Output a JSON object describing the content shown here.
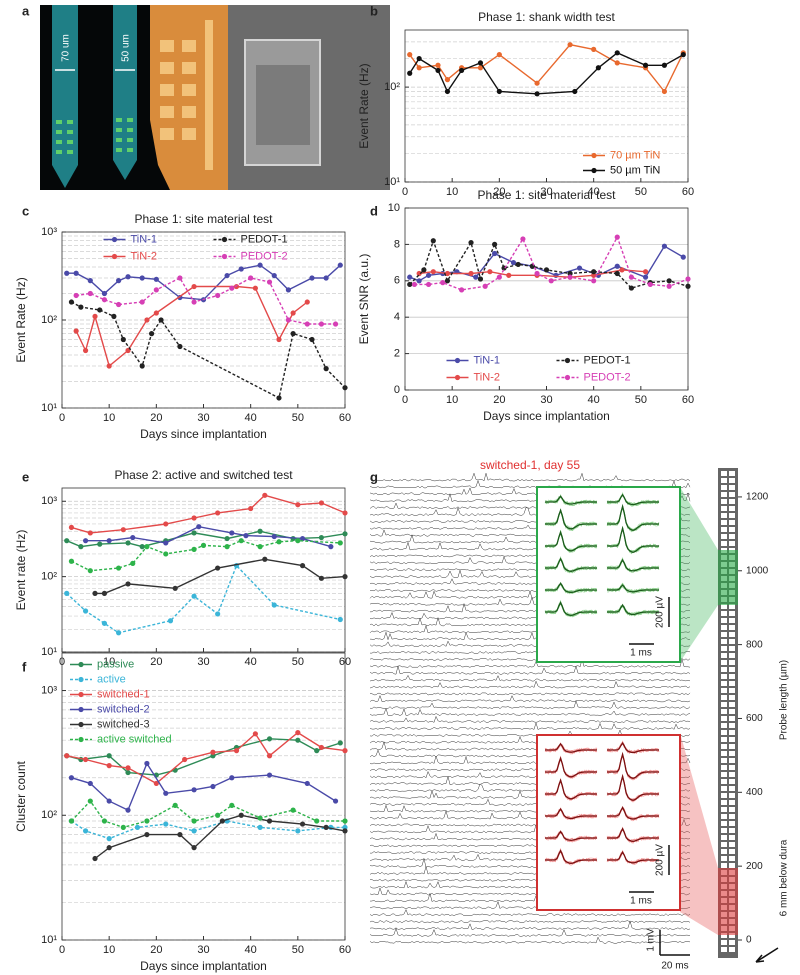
{
  "chart_data": [
    {
      "type": "line",
      "title": "Phase 1: shank width test",
      "ylabel": "Event Rate (Hz)",
      "log_y": true,
      "grid": true,
      "legend": "lower right",
      "xlim": [
        0,
        60
      ],
      "xticks": [
        0,
        10,
        20,
        30,
        40,
        50,
        60
      ],
      "ylim": [
        10,
        400
      ],
      "yticks": [
        {
          "value": 10,
          "label": "10¹"
        },
        {
          "value": 100,
          "label": "10²"
        }
      ],
      "series": [
        {
          "name": "70 µm TiN",
          "color": "#e8692e",
          "style": "solid",
          "x": [
            1,
            3,
            7,
            9,
            12,
            16,
            20,
            28,
            35,
            40,
            45,
            51,
            55,
            59
          ],
          "values": [
            220,
            160,
            170,
            120,
            160,
            160,
            220,
            110,
            280,
            250,
            180,
            160,
            90,
            230
          ]
        },
        {
          "name": "50 µm TiN",
          "color": "#111111",
          "style": "solid",
          "x": [
            1,
            3,
            7,
            9,
            12,
            16,
            20,
            28,
            36,
            41,
            45,
            51,
            55,
            59
          ],
          "values": [
            140,
            200,
            150,
            90,
            150,
            180,
            90,
            85,
            90,
            160,
            230,
            170,
            170,
            220
          ]
        }
      ]
    },
    {
      "type": "line",
      "title": "Phase 1: site material test",
      "ylabel": "Event Rate (Hz)",
      "xlabel": "Days since implantation",
      "log_y": true,
      "grid": true,
      "legend": "upper center",
      "xlim": [
        0,
        60
      ],
      "xticks": [
        0,
        10,
        20,
        30,
        40,
        50,
        60
      ],
      "ylim": [
        10,
        1000
      ],
      "yticks": [
        {
          "value": 10,
          "label": "10¹"
        },
        {
          "value": 100,
          "label": "10²"
        },
        {
          "value": 1000,
          "label": "10³"
        }
      ],
      "series": [
        {
          "name": "TiN-1",
          "color": "#4a4aa8",
          "style": "solid",
          "x": [
            1,
            3,
            6,
            9,
            12,
            14,
            17,
            20,
            25,
            30,
            35,
            38,
            42,
            45,
            48,
            53,
            56,
            59
          ],
          "values": [
            340,
            340,
            280,
            200,
            280,
            310,
            300,
            290,
            180,
            170,
            320,
            380,
            420,
            320,
            220,
            300,
            300,
            420
          ]
        },
        {
          "name": "TiN-2",
          "color": "#e34a4a",
          "style": "solid",
          "x": [
            3,
            5,
            7,
            10,
            14,
            18,
            20,
            28,
            37,
            41,
            46,
            49,
            52
          ],
          "values": [
            75,
            45,
            110,
            30,
            45,
            100,
            120,
            240,
            240,
            230,
            60,
            120,
            160
          ]
        },
        {
          "name": "PEDOT-1",
          "color": "#222222",
          "style": "dashed",
          "x": [
            2,
            4,
            8,
            11,
            13,
            17,
            19,
            21,
            25,
            46,
            49,
            53,
            56,
            60
          ],
          "values": [
            160,
            140,
            130,
            110,
            60,
            30,
            70,
            100,
            50,
            13,
            70,
            60,
            28,
            17
          ]
        },
        {
          "name": "PEDOT-2",
          "color": "#d63fb5",
          "style": "dashed",
          "x": [
            3,
            6,
            9,
            12,
            17,
            20,
            25,
            28,
            33,
            36,
            40,
            44,
            48,
            52,
            55,
            58
          ],
          "values": [
            190,
            200,
            170,
            150,
            160,
            220,
            300,
            160,
            190,
            230,
            300,
            270,
            100,
            90,
            90,
            90
          ]
        }
      ]
    },
    {
      "type": "line",
      "title": "Phase 1: site material test",
      "ylabel": "Event SNR (a.u.)",
      "xlabel": "Days since implantation",
      "log_y": false,
      "grid": true,
      "legend": "lower center",
      "xlim": [
        0,
        60
      ],
      "xticks": [
        0,
        10,
        20,
        30,
        40,
        50,
        60
      ],
      "ylim": [
        0,
        10
      ],
      "yticks": [
        0,
        2,
        4,
        6,
        8,
        10
      ],
      "series": [
        {
          "name": "TiN-1",
          "color": "#4a4aa8",
          "style": "solid",
          "x": [
            1,
            3,
            5,
            8,
            11,
            15,
            19,
            23,
            27,
            32,
            37,
            41,
            45,
            51,
            55,
            59
          ],
          "values": [
            6.2,
            6.0,
            6.3,
            6.4,
            6.5,
            6.2,
            7.5,
            7.0,
            6.8,
            6.3,
            6.7,
            6.3,
            6.8,
            6.2,
            7.9,
            7.3
          ]
        },
        {
          "name": "TiN-2",
          "color": "#e34a4a",
          "style": "solid",
          "x": [
            3,
            6,
            9,
            14,
            18,
            22,
            28,
            35,
            40,
            46,
            51
          ],
          "values": [
            6.4,
            6.5,
            6.4,
            6.4,
            6.5,
            6.3,
            6.3,
            6.2,
            6.3,
            6.6,
            6.5
          ]
        },
        {
          "name": "PEDOT-1",
          "color": "#222222",
          "style": "dashed",
          "x": [
            1,
            4,
            6,
            9,
            14,
            16,
            19,
            21,
            24,
            27,
            30,
            35,
            40,
            45,
            48,
            52,
            56,
            60
          ],
          "values": [
            5.8,
            6.6,
            8.2,
            6.0,
            8.1,
            6.1,
            8.0,
            6.7,
            6.9,
            6.8,
            6.6,
            6.4,
            6.5,
            6.4,
            5.6,
            5.9,
            6.0,
            5.7
          ]
        },
        {
          "name": "PEDOT-2",
          "color": "#d63fb5",
          "style": "dashed",
          "x": [
            2,
            5,
            8,
            12,
            17,
            20,
            25,
            28,
            31,
            35,
            40,
            45,
            48,
            52,
            56,
            60
          ],
          "values": [
            5.8,
            5.8,
            5.9,
            5.5,
            5.7,
            6.2,
            8.3,
            6.4,
            6.0,
            6.2,
            6.0,
            8.4,
            6.2,
            5.8,
            5.7,
            6.1
          ]
        }
      ]
    },
    {
      "type": "line",
      "title": "Phase 2: active and switched test",
      "ylabel": "Event rate (Hz)",
      "log_y": true,
      "grid": true,
      "xlim": [
        0,
        60
      ],
      "xticks": [
        0,
        10,
        20,
        30,
        40,
        50,
        60
      ],
      "ylim": [
        10,
        1500
      ],
      "yticks": [
        {
          "value": 10,
          "label": "10¹"
        },
        {
          "value": 100,
          "label": "10²"
        },
        {
          "value": 1000,
          "label": "10³"
        }
      ],
      "series": [
        {
          "color": "#2e8b57",
          "style": "solid",
          "x": [
            1,
            4,
            8,
            14,
            17,
            22,
            28,
            35,
            42,
            49,
            55,
            60
          ],
          "values": [
            300,
            250,
            270,
            280,
            250,
            300,
            380,
            320,
            400,
            320,
            330,
            370
          ]
        },
        {
          "color": "#3bb5d8",
          "style": "dashed",
          "x": [
            1,
            5,
            9,
            12,
            23,
            28,
            33,
            37,
            45,
            59
          ],
          "values": [
            60,
            35,
            24,
            18,
            26,
            55,
            32,
            140,
            42,
            27
          ]
        },
        {
          "color": "#e34a4a",
          "style": "solid",
          "x": [
            2,
            6,
            13,
            22,
            28,
            33,
            40,
            43,
            50,
            55,
            60
          ],
          "values": [
            450,
            380,
            420,
            500,
            600,
            700,
            800,
            1200,
            900,
            950,
            700
          ]
        },
        {
          "color": "#4a4aa8",
          "style": "solid",
          "x": [
            5,
            10,
            15,
            22,
            29,
            36,
            39,
            45,
            51,
            57
          ],
          "values": [
            300,
            300,
            330,
            280,
            460,
            380,
            350,
            340,
            320,
            250
          ]
        },
        {
          "color": "#333333",
          "style": "solid",
          "x": [
            7,
            9,
            14,
            24,
            33,
            43,
            51,
            55,
            60
          ],
          "values": [
            60,
            60,
            80,
            70,
            130,
            170,
            140,
            95,
            100
          ]
        },
        {
          "color": "#2db34a",
          "style": "dashed",
          "x": [
            2,
            6,
            12,
            15,
            18,
            22,
            28,
            30,
            35,
            38,
            42,
            46,
            50,
            59
          ],
          "values": [
            160,
            120,
            130,
            150,
            250,
            200,
            230,
            260,
            250,
            300,
            250,
            290,
            300,
            280
          ]
        }
      ]
    },
    {
      "type": "line",
      "ylabel": "Cluster count",
      "xlabel": "Days since implantation",
      "log_y": true,
      "grid": true,
      "legend": "upper left",
      "xlim": [
        0,
        60
      ],
      "xticks": [
        0,
        10,
        20,
        30,
        40,
        50,
        60
      ],
      "ylim": [
        10,
        2000
      ],
      "yticks": [
        {
          "value": 10,
          "label": "10¹"
        },
        {
          "value": 100,
          "label": "10²"
        },
        {
          "value": 1000,
          "label": "10³"
        }
      ],
      "series": [
        {
          "name": "passive",
          "color": "#2e8b57",
          "style": "solid",
          "x": [
            1,
            4,
            10,
            14,
            20,
            24,
            32,
            37,
            44,
            50,
            54,
            59
          ],
          "values": [
            300,
            280,
            300,
            220,
            210,
            230,
            300,
            350,
            410,
            400,
            330,
            380
          ]
        },
        {
          "name": "active",
          "color": "#3bb5d8",
          "style": "dashed",
          "x": [
            2,
            5,
            10,
            16,
            22,
            28,
            35,
            42,
            50,
            57,
            60
          ],
          "values": [
            90,
            75,
            65,
            80,
            85,
            75,
            90,
            80,
            75,
            80,
            80
          ]
        },
        {
          "name": "switched-1",
          "color": "#e34a4a",
          "style": "solid",
          "x": [
            1,
            5,
            10,
            14,
            20,
            26,
            32,
            37,
            41,
            44,
            50,
            55,
            60
          ],
          "values": [
            300,
            280,
            250,
            240,
            180,
            280,
            320,
            330,
            450,
            300,
            460,
            350,
            330
          ]
        },
        {
          "name": "switched-2",
          "color": "#4a4aa8",
          "style": "solid",
          "x": [
            2,
            6,
            10,
            14,
            18,
            22,
            28,
            32,
            36,
            44,
            52,
            58
          ],
          "values": [
            200,
            180,
            130,
            110,
            260,
            150,
            160,
            170,
            200,
            210,
            180,
            130
          ]
        },
        {
          "name": "switched-3",
          "color": "#333333",
          "style": "solid",
          "x": [
            7,
            10,
            18,
            25,
            28,
            34,
            38,
            44,
            51,
            56,
            60
          ],
          "values": [
            45,
            55,
            70,
            70,
            55,
            90,
            100,
            90,
            85,
            80,
            75
          ]
        },
        {
          "name": "active switched",
          "color": "#2db34a",
          "style": "dashed",
          "x": [
            2,
            6,
            9,
            13,
            18,
            24,
            28,
            33,
            36,
            42,
            49,
            54,
            60
          ],
          "values": [
            90,
            130,
            90,
            80,
            90,
            120,
            90,
            100,
            120,
            95,
            110,
            90,
            90
          ]
        }
      ]
    }
  ],
  "panel_labels": [
    "a",
    "b",
    "c",
    "d",
    "e",
    "f",
    "g"
  ],
  "panel_a": {
    "labels": [
      "70 um",
      "50 um"
    ]
  },
  "panel_g": {
    "title": "switched-1, day 55",
    "inset_volt": "200 µV",
    "inset_time": "1 ms",
    "volt_bar": "1 mV",
    "time_bar": "20 ms",
    "probe": {
      "ylabel": "Probe length (µm)",
      "note": "6 mm below dura",
      "ylim": [
        0,
        1300
      ],
      "yticks": [
        0,
        200,
        400,
        600,
        800,
        1000,
        1200
      ]
    }
  }
}
